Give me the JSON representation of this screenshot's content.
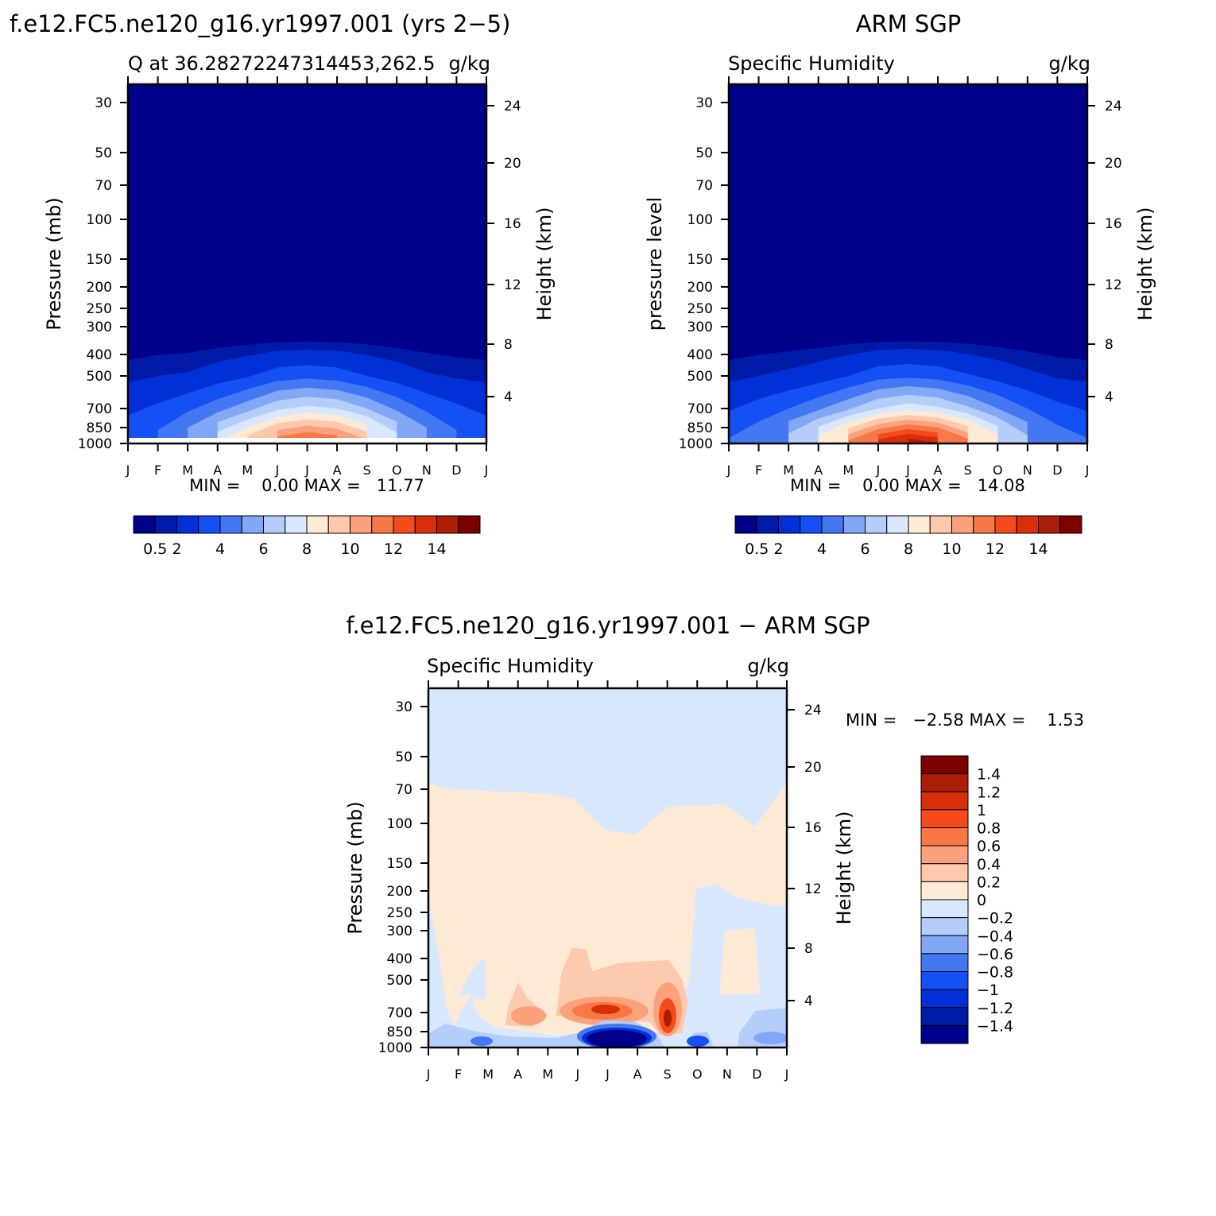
{
  "chart_data": [
    {
      "type": "heatmap",
      "title": "f.e12.FC5.ne120_g16.yr1997.001 (yrs 2−5)",
      "subtitle_left": "Q at 36.28272247314453,262.5",
      "subtitle_right": "g/kg",
      "ylabel": "Pressure (mb)",
      "ylabel_right": "Height (km)",
      "xlabels": [
        "J",
        "F",
        "M",
        "A",
        "M",
        "J",
        "J",
        "A",
        "S",
        "O",
        "N",
        "D",
        "J"
      ],
      "pressure_ticks": [
        "30",
        "50",
        "70",
        "100",
        "150",
        "200",
        "250",
        "300",
        "400",
        "500",
        "700",
        "850",
        "1000"
      ],
      "height_ticks": [
        "24",
        "20",
        "16",
        "12",
        "8",
        "4"
      ],
      "stats": "MIN =    0.00 MAX =   11.77",
      "colorbar_labels": [
        "0.5",
        "2",
        "4",
        "6",
        "8",
        "10",
        "12",
        "14"
      ],
      "values_g_per_kg": {
        "months": [
          "J",
          "F",
          "M",
          "A",
          "M",
          "J",
          "J",
          "A",
          "S",
          "O",
          "N",
          "D",
          "J"
        ],
        "surface": [
          2.8,
          3.5,
          5.0,
          7.2,
          9.0,
          11.0,
          11.77,
          11.2,
          9.5,
          7.0,
          5.0,
          3.5,
          2.8
        ],
        "p700": [
          1.8,
          2.2,
          2.8,
          3.6,
          4.6,
          5.8,
          6.3,
          6.0,
          5.0,
          3.8,
          2.8,
          2.2,
          1.8
        ],
        "p500": [
          0.8,
          1.0,
          1.1,
          1.5,
          1.9,
          2.5,
          2.7,
          2.5,
          2.0,
          1.5,
          1.1,
          0.9,
          0.8
        ]
      }
    },
    {
      "type": "heatmap",
      "title": "ARM SGP",
      "subtitle_left": "Specific Humidity",
      "subtitle_right": "g/kg",
      "ylabel": "pressure level",
      "ylabel_right": "Height (km)",
      "xlabels": [
        "J",
        "F",
        "M",
        "A",
        "M",
        "J",
        "J",
        "A",
        "S",
        "O",
        "N",
        "D",
        "J"
      ],
      "pressure_ticks": [
        "30",
        "50",
        "70",
        "100",
        "150",
        "200",
        "250",
        "300",
        "400",
        "500",
        "700",
        "850",
        "1000"
      ],
      "height_ticks": [
        "24",
        "20",
        "16",
        "12",
        "8",
        "4"
      ],
      "stats": "MIN =    0.00 MAX =   14.08",
      "colorbar_labels": [
        "0.5",
        "2",
        "4",
        "6",
        "8",
        "10",
        "12",
        "14"
      ],
      "values_g_per_kg": {
        "months": [
          "J",
          "F",
          "M",
          "A",
          "M",
          "J",
          "J",
          "A",
          "S",
          "O",
          "N",
          "D",
          "J"
        ],
        "surface": [
          3.2,
          4.0,
          5.8,
          8.0,
          10.5,
          12.8,
          14.08,
          13.2,
          10.8,
          8.0,
          5.6,
          3.8,
          3.2
        ],
        "p700": [
          1.9,
          2.4,
          3.0,
          3.8,
          4.8,
          6.0,
          6.6,
          6.2,
          5.2,
          4.0,
          3.0,
          2.3,
          1.9
        ],
        "p500": [
          0.8,
          1.0,
          1.2,
          1.5,
          2.0,
          2.6,
          2.8,
          2.6,
          2.1,
          1.6,
          1.2,
          0.9,
          0.8
        ]
      }
    },
    {
      "type": "heatmap",
      "title": "f.e12.FC5.ne120_g16.yr1997.001 − ARM SGP",
      "subtitle_left": "Specific Humidity",
      "subtitle_right": "g/kg",
      "ylabel": "Pressure (mb)",
      "ylabel_right": "Height (km)",
      "xlabels": [
        "J",
        "F",
        "M",
        "A",
        "M",
        "J",
        "J",
        "A",
        "S",
        "O",
        "N",
        "D",
        "J"
      ],
      "pressure_ticks": [
        "30",
        "50",
        "70",
        "100",
        "150",
        "200",
        "250",
        "300",
        "400",
        "500",
        "700",
        "850",
        "1000"
      ],
      "height_ticks": [
        "24",
        "20",
        "16",
        "12",
        "8",
        "4"
      ],
      "stats": "MIN =   −2.58 MAX =    1.53",
      "colorbar_labels": [
        "1.4",
        "1.2",
        "1",
        "0.8",
        "0.6",
        "0.4",
        "0.2",
        "0",
        "−0.2",
        "−0.4",
        "−0.6",
        "−0.8",
        "−1",
        "−1.2",
        "−1.4"
      ]
    }
  ],
  "colors": {
    "q_scale": [
      "#00008a",
      "#001aa8",
      "#0030d6",
      "#1550f5",
      "#4477f2",
      "#82a7f5",
      "#b5cdfa",
      "#d8e9ff",
      "#ffead6",
      "#fdc9ad",
      "#fba17c",
      "#f77846",
      "#f44a1c",
      "#d92e0a",
      "#ab1d06",
      "#7d0000"
    ],
    "diff_scale": [
      "#7d0000",
      "#ab1d06",
      "#d92e0a",
      "#f44a1c",
      "#f77846",
      "#fba17c",
      "#fdc9ad",
      "#ffead6",
      "#d8e9ff",
      "#b5cdfa",
      "#82a7f5",
      "#4477f2",
      "#1550f5",
      "#0030d6",
      "#001aa8",
      "#00008a"
    ]
  }
}
